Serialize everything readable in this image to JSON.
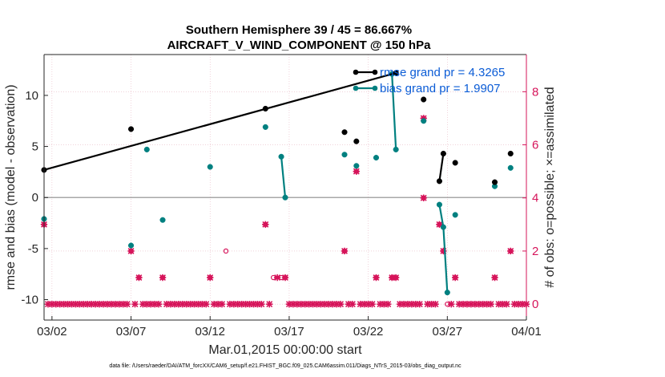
{
  "colors": {
    "rmse": "#000000",
    "bias": "#008080",
    "obs": "#d6145a",
    "grid": "#e8b8c4",
    "zero_line": "#a8a8a8",
    "legend_text": "#0b5cd6",
    "axis": "#262626"
  },
  "chart_data": {
    "type": "line",
    "title": "Southern Hemisphere 39 / 45 = 86.667%",
    "subtitle": "AIRCRAFT_V_WIND_COMPONENT @ 150 hPa",
    "xlabel": "Mar.01,2015 00:00:00 start",
    "ylabel": "rmse and bias (model - observation)",
    "ylabel_right": "# of obs: o=possible; ×=assimilated",
    "footer": "data file: /Users/raeder/DAI/ATM_forcXX/CAM6_setup/f.e21.FHIST_BGC.f09_025.CAM6assim.011/Diags_NTrS_2015-03/obs_diag_output.nc",
    "xlim": [
      0.5,
      31
    ],
    "ylim": [
      -12,
      14
    ],
    "ylim_right": [
      -0.6,
      9.4
    ],
    "x_ticks": [
      1,
      6,
      11,
      16,
      21,
      26,
      31
    ],
    "x_tick_labels": [
      "03/02",
      "03/07",
      "03/12",
      "03/17",
      "03/22",
      "03/27",
      "04/01"
    ],
    "y_ticks": [
      -10,
      -5,
      0,
      5,
      10
    ],
    "y_tick_labels": [
      "-10",
      "-5",
      "0",
      "5",
      "10"
    ],
    "y_right_ticks": [
      0,
      2,
      4,
      6,
      8
    ],
    "y_right_tick_labels": [
      "0",
      "2",
      "4",
      "6",
      "8"
    ],
    "grid": true,
    "legend_position": "top-right",
    "series": [
      {
        "name": "rmse grand pr = 4.3265",
        "axis": "left",
        "points": [
          [
            0.5,
            2.7
          ],
          [
            6.0,
            6.7
          ],
          [
            14.5,
            8.7
          ],
          [
            19.5,
            6.4
          ],
          [
            20.25,
            5.5
          ],
          [
            22.75,
            12.2
          ],
          [
            24.5,
            9.6
          ],
          [
            25.5,
            1.6
          ],
          [
            25.75,
            4.3
          ],
          [
            26.5,
            3.4
          ],
          [
            29.0,
            1.5
          ],
          [
            30.0,
            4.3
          ]
        ],
        "segments": [
          [
            22.5,
            22.75
          ],
          [
            25.5,
            25.75
          ]
        ]
      },
      {
        "name": "bias grand pr = 1.9907",
        "axis": "left",
        "points": [
          [
            0.5,
            -2.1
          ],
          [
            6.0,
            -4.7
          ],
          [
            7.0,
            4.7
          ],
          [
            8.0,
            -2.2
          ],
          [
            11.0,
            3.0
          ],
          [
            14.5,
            6.9
          ],
          [
            15.5,
            4.0
          ],
          [
            15.75,
            0.0
          ],
          [
            19.5,
            4.2
          ],
          [
            20.25,
            3.1
          ],
          [
            21.5,
            3.9
          ],
          [
            22.5,
            12.1
          ],
          [
            22.75,
            4.7
          ],
          [
            24.5,
            7.5
          ],
          [
            25.5,
            -0.7
          ],
          [
            25.75,
            -2.9
          ],
          [
            26.0,
            -9.3
          ],
          [
            26.5,
            -1.7
          ],
          [
            29.0,
            1.1
          ],
          [
            30.0,
            2.9
          ]
        ],
        "segments": [
          [
            15.5,
            15.75
          ],
          [
            22.5,
            22.75
          ],
          [
            25.5,
            25.75
          ],
          [
            25.75,
            26.0
          ]
        ]
      },
      {
        "name": "obs possible",
        "axis": "right",
        "marker": "o",
        "points": [
          [
            0.5,
            3
          ],
          [
            6.0,
            2
          ],
          [
            6.5,
            1
          ],
          [
            8.0,
            1
          ],
          [
            11.0,
            1
          ],
          [
            12.0,
            2
          ],
          [
            14.5,
            3
          ],
          [
            15.0,
            1
          ],
          [
            15.5,
            1
          ],
          [
            15.75,
            1
          ],
          [
            19.5,
            2
          ],
          [
            20.25,
            5
          ],
          [
            21.5,
            1
          ],
          [
            22.5,
            1
          ],
          [
            22.75,
            1
          ],
          [
            24.5,
            4
          ],
          [
            25.5,
            3
          ],
          [
            25.75,
            2
          ],
          [
            26.0,
            0
          ],
          [
            26.5,
            1
          ],
          [
            29.0,
            1
          ],
          [
            30.0,
            2
          ],
          [
            24.5,
            7
          ]
        ]
      },
      {
        "name": "obs assimilated",
        "axis": "right",
        "marker": "x",
        "points": [
          [
            0.5,
            3
          ],
          [
            6.0,
            2
          ],
          [
            6.5,
            1
          ],
          [
            8.0,
            1
          ],
          [
            11.0,
            1
          ],
          [
            14.5,
            3
          ],
          [
            15.25,
            1
          ],
          [
            15.75,
            1
          ],
          [
            19.5,
            2
          ],
          [
            20.25,
            5
          ],
          [
            21.5,
            1
          ],
          [
            22.5,
            1
          ],
          [
            22.75,
            1
          ],
          [
            24.5,
            4
          ],
          [
            25.5,
            3
          ],
          [
            25.75,
            2
          ],
          [
            26.5,
            1
          ],
          [
            29.0,
            1
          ],
          [
            30.0,
            2
          ],
          [
            24.5,
            7
          ]
        ],
        "zero_baseline": true
      }
    ]
  }
}
